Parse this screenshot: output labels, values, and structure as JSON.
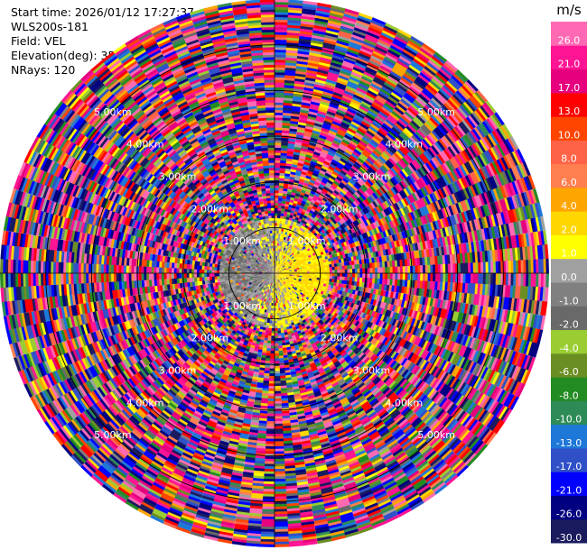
{
  "header": {
    "start_time": "Start time: 2026/01/12 17:27:37",
    "instrument": "WLS200s-181",
    "field": "Field: VEL",
    "elevation": "Elevation(deg): 35.00",
    "nrays": "NRays: 120"
  },
  "chart_data": {
    "type": "heatmap",
    "projection": "polar-ppi",
    "field": "VEL",
    "units": "m/s",
    "n_rays": 120,
    "elevation_deg": 35.0,
    "max_range_km": 6.0,
    "range_ring_labels": [
      {
        "text": "1.00km",
        "range_km": 1
      },
      {
        "text": "2.00km",
        "range_km": 2
      },
      {
        "text": "3.00km",
        "range_km": 3
      },
      {
        "text": "4.00km",
        "range_km": 4
      },
      {
        "text": "5.00km",
        "range_km": 5
      }
    ],
    "label_azimuths_deg": [
      45,
      135,
      225,
      315
    ],
    "colorbar": {
      "unit": "m/s",
      "boundaries": [
        -30.0,
        -26.0,
        -21.0,
        -17.0,
        -13.0,
        -10.0,
        -8.0,
        -6.0,
        -4.0,
        -2.0,
        -1.0,
        0.0,
        1.0,
        2.0,
        4.0,
        6.0,
        8.0,
        10.0,
        13.0,
        17.0,
        21.0,
        26.0,
        30.0
      ],
      "labels": [
        "-30.0",
        "-26.0",
        "-21.0",
        "-17.0",
        "-13.0",
        "-10.0",
        "-8.0",
        "-6.0",
        "-4.0",
        "-2.0",
        "-1.0",
        "0.0",
        "1.0",
        "2.0",
        "4.0",
        "6.0",
        "8.0",
        "10.0",
        "13.0",
        "17.0",
        "21.0",
        "26.0"
      ],
      "colors": [
        "#1a1a5e",
        "#000080",
        "#0000ff",
        "#3050c8",
        "#1e78d8",
        "#2e8b57",
        "#228b22",
        "#6b8e23",
        "#9acd32",
        "#696969",
        "#808080",
        "#a0a0a0",
        "#ffff00",
        "#ffd700",
        "#ffa500",
        "#ff7f50",
        "#ff6347",
        "#ff4500",
        "#ff0000",
        "#e6007e",
        "#ff1493",
        "#ff69b4"
      ]
    }
  }
}
